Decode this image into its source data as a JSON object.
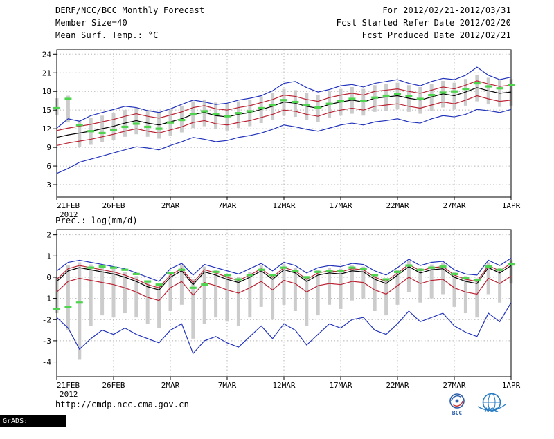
{
  "header": {
    "title": "DERF/NCC/BCC Monthly Forecast",
    "member_size": "Member Size=40",
    "for_range": "For 2012/02/21-2012/03/31",
    "fcst_started": "Fcst Started Refer Date 2012/02/20",
    "fcst_produced": "Fcst Produced Date 2012/02/21"
  },
  "footer": {
    "url": "http://cmdp.ncc.cma.gov.cn",
    "grads_label": "GrADS: COLA/IGES",
    "bcc_label": "BCC",
    "ncc_label": "NCC"
  },
  "colors": {
    "envelope": "#2233bb",
    "std_band": "#bb2233",
    "mean": "#000000",
    "observation": "#4fd44f",
    "spread_bar": "#cccccc"
  },
  "chart_data": [
    {
      "type": "line",
      "title": "Mean Surf. Temp.: °C",
      "x": {
        "n_days": 40,
        "tick_days": [
          0,
          5,
          10,
          15,
          20,
          25,
          30,
          35,
          40
        ],
        "tick_labels": [
          "21FEB",
          "26FEB",
          "2MAR",
          "7MAR",
          "12MAR",
          "17MAR",
          "22MAR",
          "27MAR",
          "1APR"
        ],
        "year_label": "2012"
      },
      "ylim": [
        1.0,
        24.7
      ],
      "yticks": [
        3,
        6,
        9,
        12,
        15,
        18,
        21,
        24
      ],
      "grid": "dotted",
      "legend_position": "none",
      "series": [
        {
          "name": "ensemble-max",
          "style": "line",
          "color": "#2233bb",
          "values": [
            12.1,
            13.6,
            13.2,
            14.1,
            14.6,
            15.1,
            15.6,
            15.4,
            14.9,
            14.6,
            15.2,
            15.9,
            16.6,
            16.3,
            15.9,
            16.1,
            16.6,
            16.9,
            17.3,
            18.1,
            19.3,
            19.6,
            18.6,
            17.9,
            18.3,
            18.9,
            19.1,
            18.7,
            19.3,
            19.6,
            19.9,
            19.3,
            18.9,
            19.6,
            20.1,
            19.9,
            20.6,
            21.9,
            20.6,
            19.9,
            20.3
          ]
        },
        {
          "name": "ensemble-min",
          "style": "line",
          "color": "#2233bb",
          "values": [
            4.8,
            5.6,
            6.6,
            7.1,
            7.6,
            8.1,
            8.6,
            9.1,
            8.9,
            8.6,
            9.3,
            9.9,
            10.6,
            10.3,
            9.9,
            10.1,
            10.6,
            10.9,
            11.3,
            11.9,
            12.6,
            12.3,
            11.9,
            11.6,
            12.1,
            12.6,
            12.9,
            12.6,
            13.1,
            13.3,
            13.6,
            13.1,
            12.9,
            13.6,
            14.1,
            13.9,
            14.3,
            15.1,
            14.9,
            14.6,
            15.1
          ]
        },
        {
          "name": "mean-plus-spread",
          "style": "line",
          "color": "#bb2233",
          "values": [
            11.7,
            12.1,
            12.4,
            12.7,
            13.1,
            13.5,
            14.0,
            14.4,
            14.0,
            13.7,
            14.2,
            14.7,
            15.4,
            15.7,
            15.2,
            15.0,
            15.4,
            15.7,
            16.2,
            16.7,
            17.4,
            17.2,
            16.7,
            16.4,
            17.0,
            17.4,
            17.7,
            17.4,
            18.0,
            18.2,
            18.4,
            18.0,
            17.7,
            18.2,
            18.7,
            18.4,
            19.0,
            19.7,
            19.2,
            18.8,
            19.0
          ]
        },
        {
          "name": "mean-minus-spread",
          "style": "line",
          "color": "#bb2233",
          "values": [
            9.3,
            9.7,
            10.0,
            10.3,
            10.7,
            11.1,
            11.6,
            12.0,
            11.6,
            11.3,
            11.8,
            12.3,
            13.0,
            13.3,
            12.8,
            12.6,
            13.0,
            13.3,
            13.8,
            14.3,
            15.0,
            14.8,
            14.3,
            14.0,
            14.6,
            15.0,
            15.3,
            15.0,
            15.6,
            15.8,
            16.0,
            15.6,
            15.3,
            15.8,
            16.3,
            16.0,
            16.6,
            17.3,
            16.8,
            16.4,
            16.6
          ]
        },
        {
          "name": "ensemble-mean",
          "style": "line",
          "color": "#000000",
          "values": [
            10.6,
            11.0,
            11.3,
            11.6,
            12.0,
            12.4,
            12.9,
            13.3,
            12.9,
            12.6,
            13.1,
            13.6,
            14.3,
            14.6,
            14.1,
            13.9,
            14.3,
            14.6,
            15.1,
            15.6,
            16.3,
            16.1,
            15.6,
            15.3,
            15.9,
            16.3,
            16.6,
            16.3,
            16.9,
            17.1,
            17.3,
            16.9,
            16.6,
            17.1,
            17.6,
            17.3,
            17.9,
            18.6,
            18.1,
            17.7,
            17.9
          ]
        },
        {
          "name": "observation",
          "style": "dash",
          "color": "#4fd44f",
          "values": [
            15.3,
            16.8,
            12.6,
            11.6,
            11.3,
            11.8,
            12.3,
            12.8,
            12.3,
            12.0,
            13.0,
            13.4,
            14.3,
            14.8,
            14.3,
            14.0,
            14.5,
            14.8,
            15.3,
            15.8,
            16.6,
            16.3,
            15.8,
            15.4,
            16.0,
            16.4,
            16.8,
            16.5,
            17.0,
            17.3,
            17.6,
            17.2,
            16.8,
            17.4,
            17.8,
            18.0,
            18.4,
            19.3,
            18.8,
            18.5,
            19.0
          ]
        },
        {
          "name": "member-spread-bar",
          "style": "bar",
          "color": "#cccccc",
          "high": [
            16.9,
            17.3,
            13.4,
            13.7,
            14.1,
            14.5,
            15.0,
            15.4,
            15.0,
            14.7,
            15.2,
            15.7,
            16.4,
            16.7,
            16.2,
            16.0,
            16.4,
            16.7,
            17.2,
            17.7,
            18.4,
            18.2,
            17.7,
            17.4,
            18.0,
            18.4,
            18.7,
            18.4,
            19.0,
            19.2,
            19.4,
            19.0,
            18.7,
            19.2,
            19.7,
            19.4,
            20.0,
            20.7,
            20.2,
            19.8,
            20.0
          ],
          "low": [
            14.2,
            13.0,
            9.1,
            9.4,
            9.8,
            10.2,
            10.7,
            11.1,
            10.7,
            10.4,
            10.9,
            11.4,
            12.1,
            12.4,
            11.9,
            11.7,
            12.1,
            12.4,
            12.9,
            13.4,
            14.1,
            13.9,
            13.4,
            13.1,
            13.7,
            14.1,
            14.4,
            14.1,
            14.7,
            14.9,
            15.1,
            14.7,
            14.4,
            14.9,
            15.4,
            15.1,
            15.7,
            16.4,
            15.9,
            15.5,
            15.7
          ]
        }
      ]
    },
    {
      "type": "line",
      "title": "Prec.: log(mm/d)",
      "x": {
        "n_days": 40,
        "tick_days": [
          0,
          5,
          10,
          15,
          20,
          25,
          30,
          35,
          40
        ],
        "tick_labels": [
          "21FEB",
          "26FEB",
          "2MAR",
          "7MAR",
          "12MAR",
          "17MAR",
          "22MAR",
          "27MAR",
          "1APR"
        ],
        "year_label": "2012"
      },
      "ylim": [
        -4.7,
        2.25
      ],
      "yticks": [
        -4,
        -3,
        -2,
        -1,
        0,
        1,
        2
      ],
      "grid": "dotted",
      "legend_position": "none",
      "series": [
        {
          "name": "ensemble-max",
          "style": "line",
          "color": "#2233bb",
          "values": [
            0.3,
            0.7,
            0.8,
            0.7,
            0.6,
            0.5,
            0.4,
            0.2,
            0.0,
            -0.2,
            0.4,
            0.65,
            0.1,
            0.6,
            0.45,
            0.3,
            0.15,
            0.4,
            0.65,
            0.3,
            0.7,
            0.55,
            0.2,
            0.45,
            0.55,
            0.5,
            0.65,
            0.6,
            0.3,
            0.1,
            0.45,
            0.85,
            0.55,
            0.7,
            0.75,
            0.35,
            0.15,
            0.1,
            0.8,
            0.55,
            0.9
          ]
        },
        {
          "name": "ensemble-min",
          "style": "line",
          "color": "#2233bb",
          "values": [
            -1.9,
            -2.4,
            -3.4,
            -2.9,
            -2.5,
            -2.7,
            -2.4,
            -2.7,
            -2.9,
            -3.1,
            -2.5,
            -2.2,
            -3.6,
            -3.0,
            -2.8,
            -3.1,
            -3.3,
            -2.8,
            -2.3,
            -2.9,
            -2.2,
            -2.5,
            -3.2,
            -2.7,
            -2.2,
            -2.4,
            -2.0,
            -1.9,
            -2.5,
            -2.7,
            -2.2,
            -1.6,
            -2.1,
            -1.9,
            -1.7,
            -2.3,
            -2.6,
            -2.8,
            -1.7,
            -2.1,
            -1.2
          ]
        },
        {
          "name": "mean-plus-spread",
          "style": "line",
          "color": "#bb2233",
          "values": [
            -0.1,
            0.4,
            0.55,
            0.45,
            0.35,
            0.25,
            0.1,
            -0.1,
            -0.35,
            -0.5,
            0.1,
            0.4,
            -0.25,
            0.35,
            0.2,
            0.0,
            -0.15,
            0.1,
            0.4,
            0.0,
            0.45,
            0.3,
            -0.1,
            0.2,
            0.3,
            0.25,
            0.4,
            0.35,
            0.0,
            -0.2,
            0.2,
            0.6,
            0.3,
            0.45,
            0.5,
            0.1,
            -0.1,
            -0.2,
            0.55,
            0.3,
            0.65
          ]
        },
        {
          "name": "mean-minus-spread",
          "style": "line",
          "color": "#bb2233",
          "values": [
            -0.7,
            -0.2,
            -0.05,
            -0.15,
            -0.25,
            -0.35,
            -0.5,
            -0.7,
            -0.95,
            -1.1,
            -0.5,
            -0.2,
            -0.85,
            -0.25,
            -0.4,
            -0.6,
            -0.75,
            -0.5,
            -0.2,
            -0.6,
            -0.15,
            -0.3,
            -0.7,
            -0.4,
            -0.3,
            -0.35,
            -0.2,
            -0.25,
            -0.6,
            -0.8,
            -0.4,
            0.0,
            -0.3,
            -0.15,
            -0.1,
            -0.5,
            -0.7,
            -0.8,
            -0.05,
            -0.3,
            0.05
          ]
        },
        {
          "name": "ensemble-mean",
          "style": "line",
          "color": "#000000",
          "values": [
            -0.2,
            0.3,
            0.45,
            0.35,
            0.25,
            0.15,
            0.0,
            -0.2,
            -0.45,
            -0.6,
            0.0,
            0.3,
            -0.35,
            0.25,
            0.1,
            -0.1,
            -0.25,
            0.0,
            0.3,
            -0.1,
            0.35,
            0.2,
            -0.2,
            0.1,
            0.2,
            0.15,
            0.3,
            0.25,
            -0.1,
            -0.3,
            0.1,
            0.5,
            0.2,
            0.35,
            0.4,
            0.0,
            -0.2,
            -0.3,
            0.45,
            0.2,
            0.55
          ]
        },
        {
          "name": "observation",
          "style": "dash",
          "color": "#4fd44f",
          "values": [
            -1.5,
            -1.4,
            -1.2,
            0.45,
            0.5,
            0.45,
            0.35,
            0.15,
            -0.2,
            -0.35,
            0.2,
            0.35,
            -0.5,
            -0.35,
            0.25,
            0.1,
            -0.1,
            0.1,
            0.35,
            0.1,
            0.45,
            0.3,
            0.0,
            0.25,
            0.3,
            0.3,
            0.45,
            0.4,
            0.1,
            -0.1,
            0.25,
            0.55,
            0.35,
            0.45,
            0.5,
            0.15,
            -0.05,
            -0.15,
            0.5,
            0.35,
            0.6
          ]
        },
        {
          "name": "member-spread-bar",
          "style": "bar",
          "color": "#cccccc",
          "high": [
            0.0,
            0.55,
            0.7,
            0.6,
            0.5,
            0.4,
            0.25,
            0.05,
            -0.2,
            -0.35,
            0.25,
            0.55,
            -0.1,
            0.5,
            0.35,
            0.15,
            0.0,
            0.25,
            0.55,
            0.15,
            0.6,
            0.45,
            0.05,
            0.35,
            0.45,
            0.4,
            0.55,
            0.5,
            0.15,
            -0.05,
            0.35,
            0.75,
            0.45,
            0.6,
            0.65,
            0.25,
            0.05,
            -0.05,
            0.7,
            0.45,
            0.8
          ],
          "low": [
            -1.7,
            -2.5,
            -3.9,
            -2.3,
            -1.8,
            -1.9,
            -1.7,
            -1.9,
            -2.2,
            -2.4,
            -1.6,
            -1.3,
            -2.9,
            -2.2,
            -1.9,
            -2.1,
            -2.3,
            -1.9,
            -1.4,
            -2.0,
            -1.3,
            -1.6,
            -2.3,
            -1.8,
            -1.3,
            -1.5,
            -1.1,
            -1.0,
            -1.6,
            -1.8,
            -1.3,
            -0.7,
            -1.2,
            -1.0,
            -0.8,
            -1.4,
            -1.7,
            -1.9,
            -0.8,
            -1.2,
            -0.3
          ]
        }
      ]
    }
  ]
}
